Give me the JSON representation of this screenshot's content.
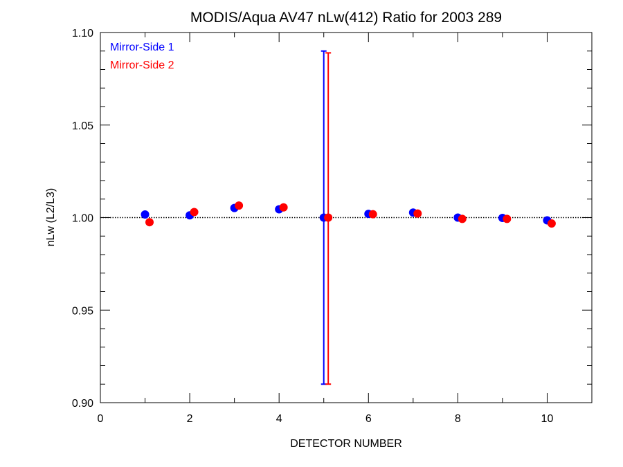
{
  "chart_data": {
    "type": "scatter",
    "title": "MODIS/Aqua AV47 nLw(412) Ratio for 2003 289",
    "xlabel": "DETECTOR NUMBER",
    "ylabel": "nLw (L2/L3)",
    "xlim": [
      0,
      11
    ],
    "ylim": [
      0.9,
      1.1
    ],
    "x_ticks": [
      0,
      2,
      4,
      6,
      8,
      10
    ],
    "x_tick_labels": [
      "0",
      "2",
      "4",
      "6",
      "8",
      "10"
    ],
    "y_ticks": [
      0.9,
      0.95,
      1.0,
      1.05,
      1.1
    ],
    "y_tick_labels": [
      "0.90",
      "0.95",
      "1.00",
      "1.05",
      "1.10"
    ],
    "reference_line": {
      "y": 1.0,
      "style": "dotted"
    },
    "legend_position": "top-left",
    "series": [
      {
        "name": "Mirror-Side 1",
        "color": "#0000ff",
        "x": [
          1,
          2,
          3,
          4,
          5,
          6,
          7,
          8,
          9,
          10
        ],
        "y": [
          1.0017,
          1.0012,
          1.0052,
          1.0045,
          1.0,
          1.002,
          1.0027,
          1.0,
          0.9998,
          0.9985
        ],
        "error_bars": [
          {
            "x": 5,
            "low": 0.91,
            "high": 1.09
          }
        ]
      },
      {
        "name": "Mirror-Side 2",
        "color": "#ff0000",
        "x": [
          1.1,
          2.1,
          3.1,
          4.1,
          5.1,
          6.1,
          7.1,
          8.1,
          9.1,
          10.1
        ],
        "y": [
          0.9975,
          1.003,
          1.0065,
          1.0055,
          1.0,
          1.0018,
          1.0022,
          0.9993,
          0.9993,
          0.9968
        ],
        "error_bars": [
          {
            "x": 5.1,
            "low": 0.91,
            "high": 1.089
          }
        ]
      }
    ]
  }
}
